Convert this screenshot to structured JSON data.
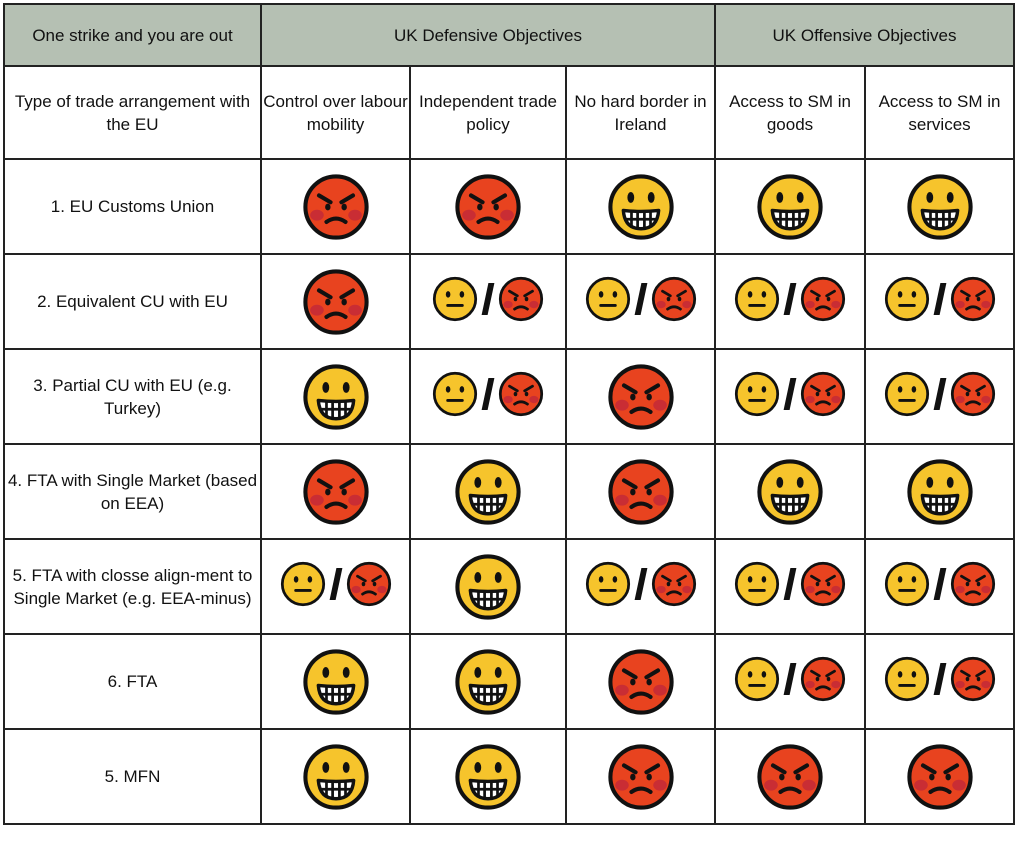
{
  "header": {
    "corner": "One strike and you are out",
    "defensive": "UK Defensive Objectives",
    "offensive": "UK Offensive Objectives"
  },
  "columns": {
    "arrangement": "Type of trade arrangement with the EU",
    "labour": "Control over labour mobility",
    "trade_policy": "Independent trade policy",
    "ireland": "No hard border in Ireland",
    "goods": "Access to SM in goods",
    "services": "Access to SM in services"
  },
  "rows": [
    {
      "label": "1.  EU Customs Union",
      "cells": [
        "angry",
        "angry",
        "grin",
        "grin",
        "grin"
      ]
    },
    {
      "label": "2. Equivalent CU with EU",
      "cells": [
        "angry",
        "neutral/angry",
        "neutral/angry",
        "neutral/angry",
        "neutral/angry"
      ]
    },
    {
      "label": "3. Partial CU with EU (e.g. Turkey)",
      "cells": [
        "grin",
        "neutral/angry",
        "angry",
        "neutral/angry",
        "neutral/angry"
      ]
    },
    {
      "label": "4. FTA with Single Market (based on EEA)",
      "cells": [
        "angry",
        "grin",
        "angry",
        "grin",
        "grin"
      ]
    },
    {
      "label": "5. FTA with closse align-ment to Single Market (e.g. EEA-minus)",
      "cells": [
        "neutral/angry",
        "grin",
        "neutral/angry",
        "neutral/angry",
        "neutral/angry"
      ]
    },
    {
      "label": "6. FTA",
      "cells": [
        "grin",
        "grin",
        "angry",
        "neutral/angry",
        "neutral/angry"
      ]
    },
    {
      "label": "5. MFN",
      "cells": [
        "grin",
        "grin",
        "angry",
        "angry",
        "angry"
      ]
    }
  ],
  "legend_icons": {
    "grin": "grinning-face-icon",
    "neutral": "neutral-face-icon",
    "angry": "angry-face-icon"
  },
  "colors": {
    "header_bg": "#b5c0b3",
    "grin_fill": "#f6c42c",
    "angry_fill": "#e8431f",
    "blush": "#c0283a"
  }
}
